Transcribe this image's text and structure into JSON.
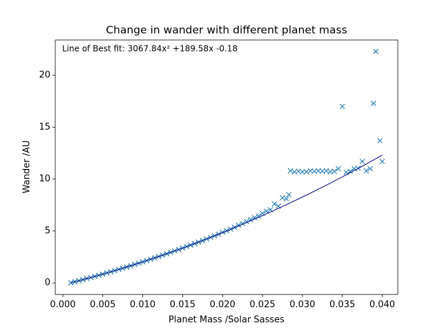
{
  "chart_data": {
    "type": "scatter",
    "title": "Change in wander with different planet mass",
    "x_label": "Planet Mass /Solar Sasses",
    "y_label": "Wander /AU",
    "annotation": "Line of Best fit: 3067.84x² +189.58x -0.18",
    "xlim": [
      -0.00095,
      0.04195
    ],
    "ylim": [
      -1.115,
      23.4
    ],
    "xticks": [
      {
        "value": 0,
        "label": "0.000"
      },
      {
        "value": 0.005,
        "label": "0.005"
      },
      {
        "value": 0.01,
        "label": "0.010"
      },
      {
        "value": 0.015,
        "label": "0.015"
      },
      {
        "value": 0.02,
        "label": "0.020"
      },
      {
        "value": 0.025,
        "label": "0.025"
      },
      {
        "value": 0.03,
        "label": "0.030"
      },
      {
        "value": 0.035,
        "label": "0.035"
      },
      {
        "value": 0.04,
        "label": "0.040"
      }
    ],
    "yticks": [
      0,
      5,
      10,
      15,
      20
    ],
    "series": [
      {
        "kind": "scatter",
        "marker": "x",
        "color": "#1f77b4",
        "x": [
          0.001,
          0.0015,
          0.002,
          0.0025,
          0.003,
          0.0035,
          0.004,
          0.0045,
          0.005,
          0.0055,
          0.006,
          0.0065,
          0.007,
          0.0075,
          0.008,
          0.0085,
          0.009,
          0.0095,
          0.01,
          0.0105,
          0.011,
          0.0115,
          0.012,
          0.0125,
          0.013,
          0.0135,
          0.014,
          0.0145,
          0.015,
          0.0155,
          0.016,
          0.0165,
          0.017,
          0.0175,
          0.018,
          0.0185,
          0.019,
          0.0195,
          0.02,
          0.0205,
          0.021,
          0.0215,
          0.022,
          0.0225,
          0.023,
          0.0235,
          0.024,
          0.0245,
          0.025,
          0.0255,
          0.026,
          0.0265,
          0.027,
          0.0275,
          0.028,
          0.0283,
          0.0285,
          0.029,
          0.0295,
          0.03,
          0.0305,
          0.031,
          0.0315,
          0.032,
          0.0325,
          0.033,
          0.0335,
          0.034,
          0.0345,
          0.035,
          0.0355,
          0.036,
          0.0365,
          0.037,
          0.0375,
          0.038,
          0.0385,
          0.0389,
          0.0392,
          0.0397,
          0.04
        ],
        "values": [
          0.01,
          0.11,
          0.21,
          0.31,
          0.42,
          0.52,
          0.63,
          0.74,
          0.84,
          0.96,
          1.07,
          1.18,
          1.3,
          1.41,
          1.53,
          1.65,
          1.77,
          1.9,
          2.02,
          2.15,
          2.28,
          2.41,
          2.54,
          2.67,
          2.8,
          2.94,
          3.08,
          3.21,
          3.35,
          3.5,
          3.64,
          3.78,
          3.93,
          4.08,
          4.23,
          4.38,
          4.53,
          4.68,
          4.88,
          5.02,
          5.18,
          5.35,
          5.55,
          5.72,
          5.9,
          6.08,
          6.28,
          6.45,
          6.7,
          6.9,
          7.05,
          7.6,
          7.4,
          8.2,
          8.1,
          8.5,
          10.8,
          10.7,
          10.75,
          10.7,
          10.7,
          10.8,
          10.75,
          10.8,
          10.75,
          10.8,
          10.7,
          10.75,
          11.0,
          17.0,
          10.65,
          10.75,
          11.0,
          11.05,
          11.7,
          10.8,
          11.0,
          17.3,
          22.3,
          13.7,
          11.7
        ]
      },
      {
        "kind": "line",
        "color": "#000080",
        "x": [
          0.001,
          0.0025,
          0.005,
          0.0075,
          0.01,
          0.0125,
          0.015,
          0.0175,
          0.02,
          0.0225,
          0.025,
          0.0275,
          0.03,
          0.0325,
          0.035,
          0.0375,
          0.04
        ],
        "values": [
          0.01,
          0.31,
          0.84,
          1.41,
          2.02,
          2.67,
          3.35,
          4.08,
          4.84,
          5.64,
          6.48,
          7.35,
          8.27,
          9.22,
          10.21,
          11.24,
          12.31
        ]
      }
    ]
  }
}
